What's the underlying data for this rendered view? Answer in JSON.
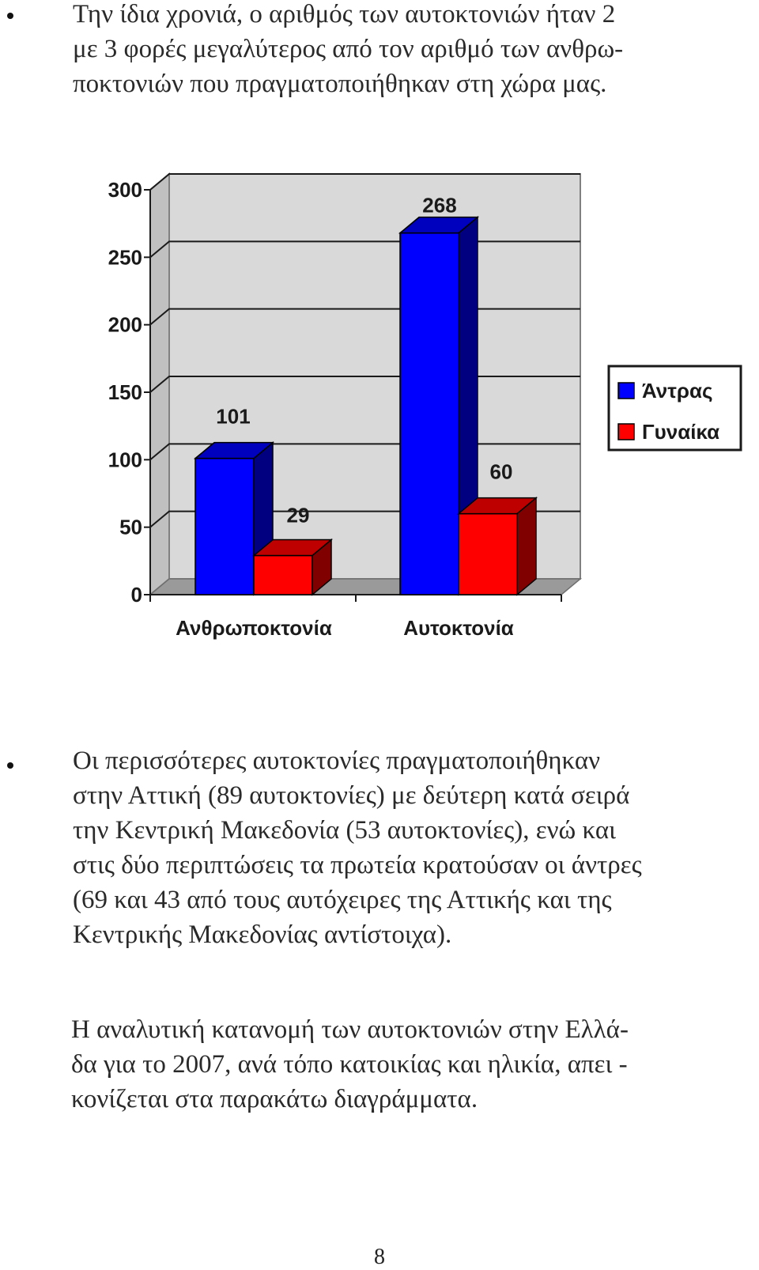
{
  "paragraph1": {
    "lines": [
      "Την ίδια χρονιά, ο αριθμός των αυτοκτονιών ήταν 2",
      "με 3 φορές μεγαλύτερος από τον αριθμό των ανθρω-",
      "ποκτονιών που πραγματοποιήθηκαν στη χώρα μας."
    ]
  },
  "chart_data": {
    "type": "bar",
    "style": "3d-clustered",
    "categories": [
      "Ανθρωποκτονία",
      "Αυτοκτονία"
    ],
    "series": [
      {
        "name": "Άντρας",
        "values": [
          101,
          268
        ],
        "color": "#0000ff"
      },
      {
        "name": "Γυναίκα",
        "values": [
          29,
          60
        ],
        "color": "#ff0000"
      }
    ],
    "ylim": [
      0,
      300
    ],
    "yticks": [
      0,
      50,
      100,
      150,
      200,
      250,
      300
    ],
    "grid": true,
    "legend": "right"
  },
  "paragraph2": {
    "lines": [
      "Οι περισσότερες αυτοκτονίες πραγματοποιήθηκαν",
      "στην Αττική (89 αυτοκτονίες) με δεύτερη κατά σειρά",
      "την Κεντρική Μακεδονία (53 αυτοκτονίες), ενώ και",
      "στις δύο περιπτώσεις τα πρωτεία κρατούσαν οι άντρες",
      "(69 και 43 από τους αυτόχειρες της Αττικής και της",
      "Κεντρικής Μακεδονίας αντίστοιχα)."
    ]
  },
  "paragraph3": {
    "lines": [
      "Η αναλυτική κατανομή των αυτοκτονιών στην Ελλά-",
      "δα για το 2007, ανά τόπο κατοικίας και ηλικία, απει -",
      "κονίζεται στα παρακάτω διαγράμματα."
    ]
  },
  "page_number": "8"
}
